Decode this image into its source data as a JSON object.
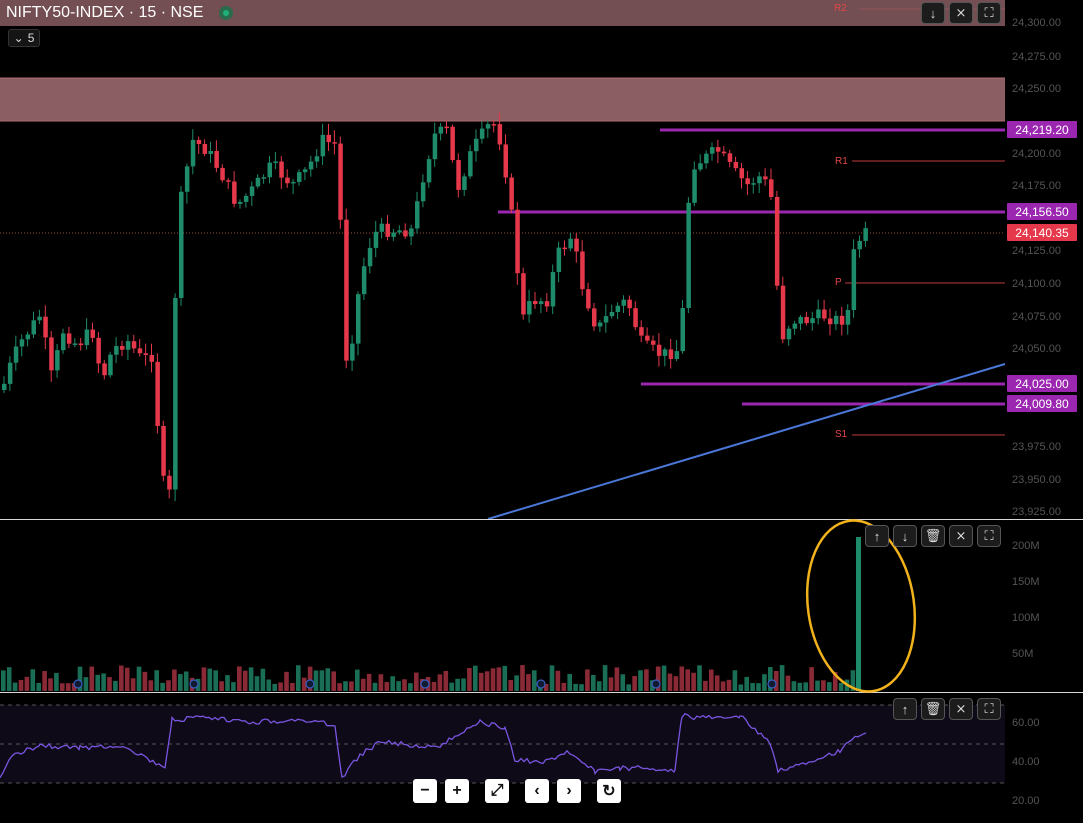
{
  "header": {
    "symbol": "NIFTY50-INDEX · 15 · NSE",
    "interval_badge": "5"
  },
  "colors": {
    "up": "#1e8c6a",
    "down": "#e5384a",
    "zone": "#8a5e62",
    "level_line": "#9b27b0",
    "trendline": "#4a78d8",
    "rsi": "#7a55e0",
    "highlight": "#f2b21c"
  },
  "price_axis": {
    "ticks": [
      "24,300.00",
      "24,275.00",
      "24,250.00",
      "24,200.00",
      "24,175.00",
      "24,125.00",
      "24,100.00",
      "24,075.00",
      "24,050.00",
      "23,975.00",
      "23,950.00",
      "23,925.00"
    ]
  },
  "price_labels": [
    {
      "text": "24,219.20",
      "kind": "level"
    },
    {
      "text": "24,156.50",
      "kind": "level"
    },
    {
      "text": "24,140.35",
      "kind": "last"
    },
    {
      "text": "24,025.00",
      "kind": "level"
    },
    {
      "text": "24,009.80",
      "kind": "level"
    }
  ],
  "pivots": {
    "r2": "R2",
    "r1": "R1",
    "p": "P",
    "s1": "S1"
  },
  "volume_axis": {
    "ticks": [
      "200M",
      "150M",
      "100M",
      "50M"
    ]
  },
  "rsi_axis": {
    "ticks": [
      "60.00",
      "40.00",
      "20.00"
    ]
  },
  "main_pane_buttons": [
    "down-arrow",
    "collapse",
    "maximize"
  ],
  "volume_pane_buttons": [
    "up-arrow",
    "down-arrow",
    "delete",
    "collapse",
    "maximize"
  ],
  "rsi_pane_buttons": [
    "up-arrow",
    "delete",
    "collapse",
    "maximize"
  ],
  "navigation": [
    "zoom-out",
    "zoom-in",
    "reset-scale",
    "scroll-left",
    "scroll-right",
    "reset"
  ]
}
